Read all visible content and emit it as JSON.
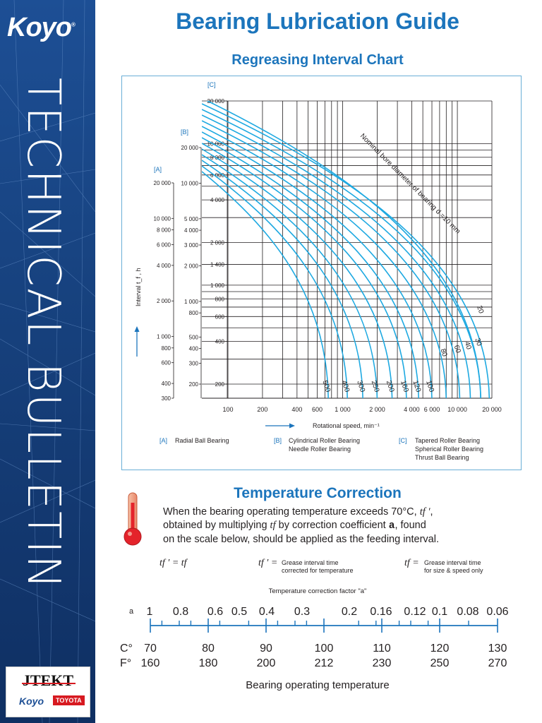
{
  "sidebar": {
    "logo": "Koyo",
    "logo_mark": "®",
    "vertical_title": "TECHNICAL BULLETIN",
    "footer_brand": "JTEKT",
    "footer_koyo": "Koyo",
    "footer_toyota": "TOYOTA"
  },
  "header": {
    "title": "Bearing Lubrication Guide",
    "subtitle": "Regreasing Interval Chart"
  },
  "chart_data": {
    "type": "line",
    "title": "Regreasing Interval Chart",
    "xlabel": "Rotational speed, min⁻¹",
    "ylabel": "Interval t_f , h",
    "x_scale": "log",
    "x_ticks": [
      "100",
      "200",
      "400",
      "600",
      "1 000",
      "2 000",
      "4 000",
      "6 000",
      "10 000",
      "20 000"
    ],
    "x_tick_values": [
      100,
      200,
      400,
      600,
      1000,
      2000,
      4000,
      6000,
      10000,
      20000
    ],
    "axes": [
      {
        "key": "A",
        "label": "[A]",
        "ticks": [
          300,
          400,
          600,
          800,
          1000,
          2000,
          4000,
          6000,
          8000,
          10000,
          20000
        ],
        "tick_labels": [
          "300",
          "400",
          "600",
          "800",
          "1 000",
          "2 000",
          "4 000",
          "6 000",
          "8 000",
          "10 000",
          "20 000"
        ]
      },
      {
        "key": "B",
        "label": "[B]",
        "ticks": [
          200,
          300,
          400,
          500,
          800,
          1000,
          2000,
          3000,
          4000,
          5000,
          10000,
          20000
        ],
        "tick_labels": [
          "200",
          "300",
          "400",
          "500",
          "800",
          "1 000",
          "2 000",
          "3 000",
          "4 000",
          "5 000",
          "10 000",
          "20 000"
        ]
      },
      {
        "key": "C",
        "label": "[C]",
        "ticks": [
          200,
          400,
          600,
          800,
          1000,
          1400,
          2000,
          4000,
          6000,
          8000,
          10000,
          20000
        ],
        "tick_labels": [
          "200",
          "400",
          "600",
          "800",
          "1 000",
          "1 400",
          "2 000",
          "4 000",
          "6 000",
          "8 000",
          "10 000",
          "20 000"
        ]
      }
    ],
    "curve_annotation": "Nominal bore diameter of bearing d =10 mm",
    "series": [
      {
        "name": "10",
        "drop_x": 16000
      },
      {
        "name": "20",
        "drop_x": 19000
      },
      {
        "name": "30",
        "drop_x": 16000
      },
      {
        "name": "40",
        "drop_x": 13000
      },
      {
        "name": "60",
        "drop_x": 10500
      },
      {
        "name": "80",
        "drop_x": 8000
      },
      {
        "name": "100",
        "drop_x": 6000
      },
      {
        "name": "120",
        "drop_x": 4600
      },
      {
        "name": "160",
        "drop_x": 3600
      },
      {
        "name": "200",
        "drop_x": 2700
      },
      {
        "name": "250",
        "drop_x": 2000
      },
      {
        "name": "300",
        "drop_x": 1500
      },
      {
        "name": "400",
        "drop_x": 1100
      },
      {
        "name": "500",
        "drop_x": 750
      }
    ],
    "curve_color": "#1ea9e1"
  },
  "chart_legend": {
    "a_key": "[A]",
    "a_text": "Radial Ball Bearing",
    "b_key": "[B]",
    "b_text1": "Cylindrical Roller Bearing",
    "b_text2": "Needle Roller Bearing",
    "c_key": "[C]",
    "c_text1": "Tapered Roller Bearing",
    "c_text2": "Spherical Roller Bearing",
    "c_text3": "Thrust Ball Bearing"
  },
  "temperature": {
    "title": "Temperature Correction",
    "para1": "When the bearing operating temperature exceeds 70°C,",
    "para2": "obtained by multiplying",
    "para3": "by correction coefficient",
    "para4": ", found",
    "para5": "on the scale below, should be applied as the feeding interval.",
    "coef": "a",
    "tf_prime": "tf ′",
    "tf": "tf",
    "formula": "tf ′ = tf",
    "note1_sym": "tf ′ =",
    "note1_a": "Grease interval time",
    "note1_b": "corrected for temperature",
    "note2_sym": "tf =",
    "note2_a": "Grease interval time",
    "note2_b": "for size & speed only",
    "scale_title": "Temperature correction factor \"a\"",
    "row_a": "a",
    "row_c": "C°",
    "row_f": "F°",
    "factors": [
      "1",
      "0.8",
      "0.6",
      "0.5",
      "0.4",
      "0.3",
      "0.2",
      "0.16",
      "0.12",
      "0.1",
      "0.08",
      "0.06"
    ],
    "celsius": [
      "70",
      "80",
      "90",
      "100",
      "110",
      "120",
      "130"
    ],
    "fahrenheit": [
      "160",
      "180",
      "200",
      "212",
      "230",
      "250",
      "270"
    ],
    "op_label": "Bearing operating temperature"
  },
  "colors": {
    "brand_blue": "#1c75bc",
    "sidebar_blue": "#1d4f95",
    "curve": "#1ea9e1",
    "arrow": "#1c75bc"
  }
}
